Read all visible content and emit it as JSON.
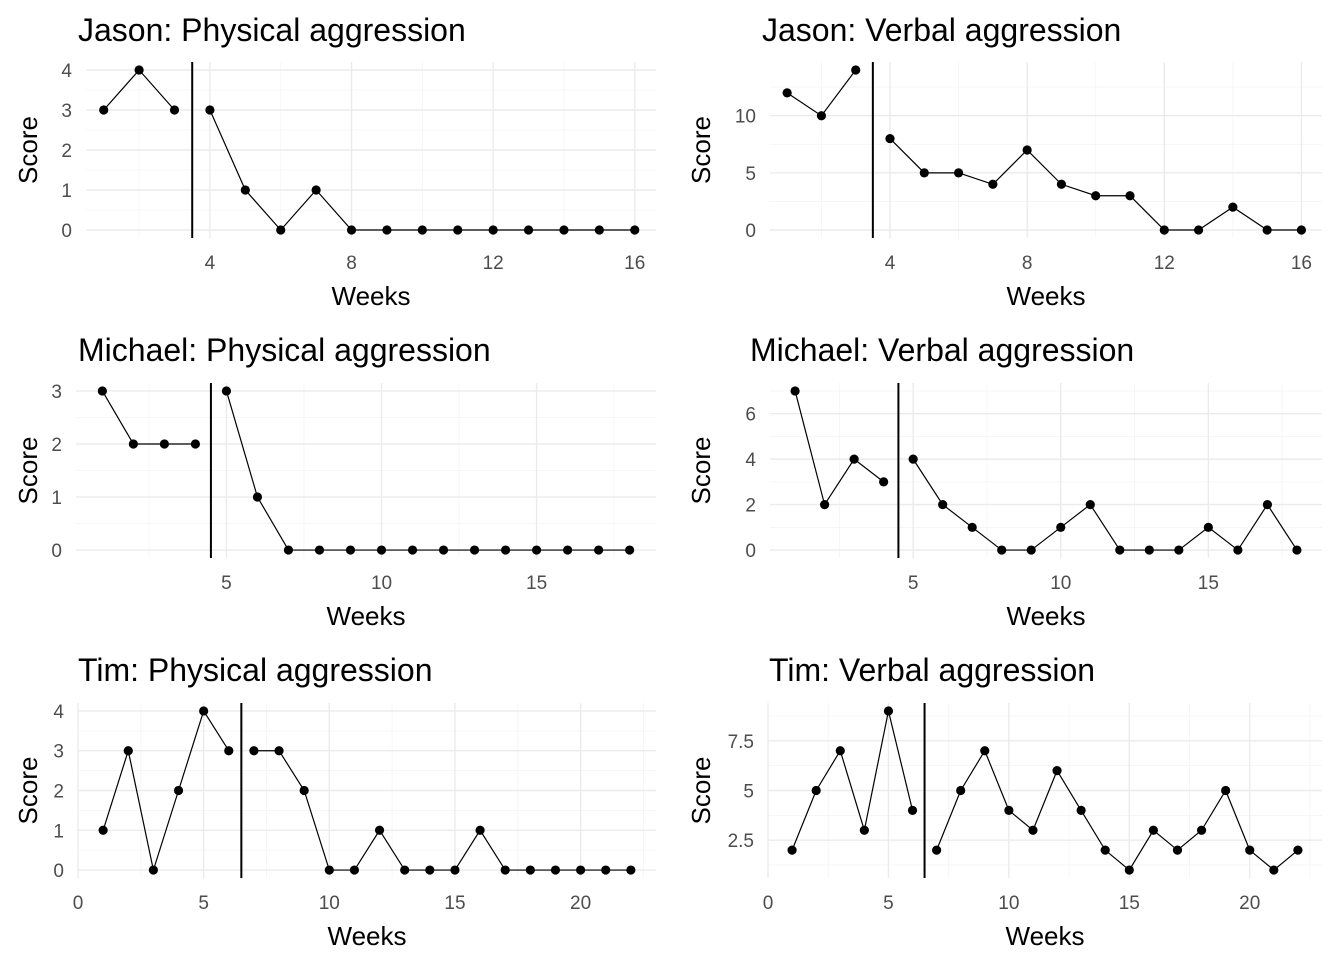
{
  "chart_data": [
    {
      "type": "line",
      "title": "Jason: Physical aggression",
      "xlabel": "Weeks",
      "ylabel": "Score",
      "xlim": [
        0.5,
        16.6
      ],
      "ylim": [
        -0.2,
        4.2
      ],
      "xticks": [
        4,
        8,
        12,
        16
      ],
      "yticks": [
        0,
        1,
        2,
        3,
        4
      ],
      "phase_change_x": 3.5,
      "grid": true,
      "segments": [
        {
          "x": [
            1,
            2,
            3
          ],
          "y": [
            3,
            4,
            3
          ]
        },
        {
          "x": [
            4,
            5,
            6,
            7,
            8,
            9,
            10,
            11,
            12,
            13,
            14,
            15,
            16
          ],
          "y": [
            3,
            1,
            0,
            1,
            0,
            0,
            0,
            0,
            0,
            0,
            0,
            0,
            0
          ]
        }
      ]
    },
    {
      "type": "line",
      "title": "Jason: Verbal aggression",
      "xlabel": "Weeks",
      "ylabel": "Score",
      "xlim": [
        0.5,
        16.6
      ],
      "ylim": [
        -0.7,
        14.7
      ],
      "xticks": [
        4,
        8,
        12,
        16
      ],
      "yticks": [
        0,
        5,
        10
      ],
      "phase_change_x": 3.5,
      "grid": true,
      "segments": [
        {
          "x": [
            1,
            2,
            3
          ],
          "y": [
            12,
            10,
            14
          ]
        },
        {
          "x": [
            4,
            5,
            6,
            7,
            8,
            9,
            10,
            11,
            12,
            13,
            14,
            15,
            16
          ],
          "y": [
            8,
            5,
            5,
            4,
            7,
            4,
            3,
            3,
            0,
            0,
            2,
            0,
            0
          ]
        }
      ]
    },
    {
      "type": "line",
      "title": "Michael: Physical aggression",
      "xlabel": "Weeks",
      "ylabel": "Score",
      "xlim": [
        0.15,
        18.85
      ],
      "ylim": [
        -0.15,
        3.15
      ],
      "xticks": [
        5,
        10,
        15
      ],
      "yticks": [
        0,
        1,
        2,
        3
      ],
      "phase_change_x": 4.5,
      "grid": true,
      "segments": [
        {
          "x": [
            1,
            2,
            3,
            4
          ],
          "y": [
            3,
            2,
            2,
            2
          ]
        },
        {
          "x": [
            5,
            6,
            7,
            8,
            9,
            10,
            11,
            12,
            13,
            14,
            15,
            16,
            17,
            18
          ],
          "y": [
            3,
            1,
            0,
            0,
            0,
            0,
            0,
            0,
            0,
            0,
            0,
            0,
            0,
            0
          ]
        }
      ]
    },
    {
      "type": "line",
      "title": "Michael: Verbal aggression",
      "xlabel": "Weeks",
      "ylabel": "Score",
      "xlim": [
        0.15,
        18.85
      ],
      "ylim": [
        -0.35,
        7.35
      ],
      "xticks": [
        5,
        10,
        15
      ],
      "yticks": [
        0,
        2,
        4,
        6
      ],
      "phase_change_x": 4.5,
      "grid": true,
      "segments": [
        {
          "x": [
            1,
            2,
            3,
            4
          ],
          "y": [
            7,
            2,
            4,
            3
          ]
        },
        {
          "x": [
            5,
            6,
            7,
            8,
            9,
            10,
            11,
            12,
            13,
            14,
            15,
            16,
            17,
            18
          ],
          "y": [
            4,
            2,
            1,
            0,
            0,
            1,
            2,
            0,
            0,
            0,
            1,
            0,
            2,
            0
          ]
        }
      ]
    },
    {
      "type": "line",
      "title": "Tim: Physical aggression",
      "xlabel": "Weeks",
      "ylabel": "Score",
      "xlim": [
        0,
        23
      ],
      "ylim": [
        -0.2,
        4.2
      ],
      "xticks": [
        0,
        5,
        10,
        15,
        20
      ],
      "yticks": [
        0,
        1,
        2,
        3,
        4
      ],
      "phase_change_x": 6.5,
      "grid": true,
      "segments": [
        {
          "x": [
            1,
            2,
            3,
            4,
            5,
            6
          ],
          "y": [
            1,
            3,
            0,
            2,
            4,
            3
          ]
        },
        {
          "x": [
            7,
            8,
            9,
            10,
            11,
            12,
            13,
            14,
            15,
            16,
            17,
            18,
            19,
            20,
            21,
            22
          ],
          "y": [
            3,
            3,
            2,
            0,
            0,
            1,
            0,
            0,
            0,
            1,
            0,
            0,
            0,
            0,
            0,
            0
          ]
        }
      ]
    },
    {
      "type": "line",
      "title": "Tim: Verbal aggression",
      "xlabel": "Weeks",
      "ylabel": "Score",
      "xlim": [
        0,
        23
      ],
      "ylim": [
        0.6,
        9.4
      ],
      "xticks": [
        0,
        5,
        10,
        15,
        20
      ],
      "yticks": [
        2.5,
        5.0,
        7.5
      ],
      "phase_change_x": 6.5,
      "grid": true,
      "segments": [
        {
          "x": [
            1,
            2,
            3,
            4,
            5,
            6
          ],
          "y": [
            2,
            5,
            7,
            3,
            9,
            4
          ]
        },
        {
          "x": [
            7,
            8,
            9,
            10,
            11,
            12,
            13,
            14,
            15,
            16,
            17,
            18,
            19,
            20,
            21,
            22
          ],
          "y": [
            2,
            5,
            7,
            4,
            3,
            6,
            4,
            2,
            1,
            3,
            2,
            3,
            5,
            2,
            1,
            2
          ]
        }
      ]
    }
  ]
}
